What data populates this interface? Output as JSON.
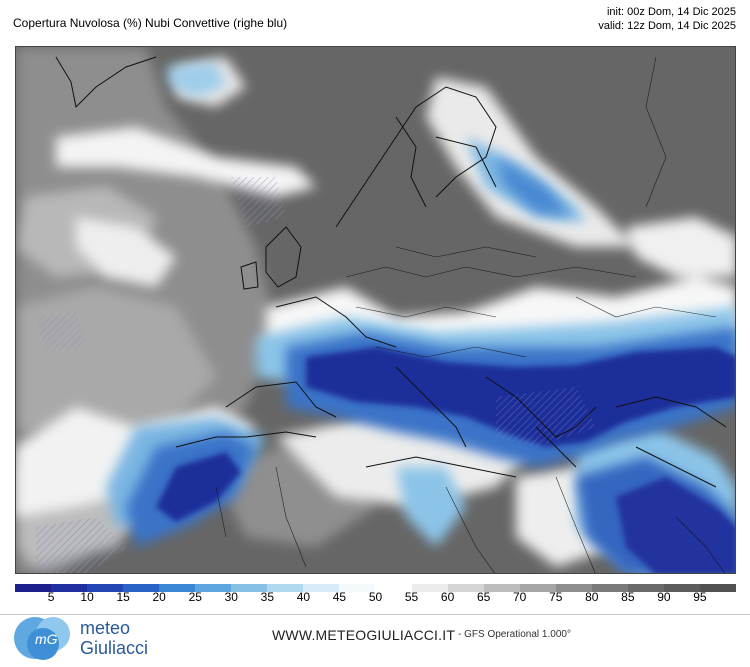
{
  "header": {
    "title": "Copertura Nuvolosa (%) Nubi Convettive (righe blu)",
    "init": "init: 00z Dom, 14 Dic 2025",
    "valid": "valid: 12z Dom, 14 Dic 2025"
  },
  "legend": {
    "ticks": [
      "5",
      "10",
      "15",
      "20",
      "25",
      "30",
      "35",
      "40",
      "45",
      "50",
      "55",
      "60",
      "65",
      "70",
      "75",
      "80",
      "85",
      "90",
      "95"
    ],
    "colors": [
      "#1e1e8c",
      "#1f2fa0",
      "#2346b4",
      "#2a63c6",
      "#3b86d4",
      "#5da5de",
      "#86c0e6",
      "#b0d8ef",
      "#d7ecf6",
      "#f4f9fc",
      "#ffffff",
      "#ececec",
      "#d5d5d5",
      "#bdbdbd",
      "#a5a5a5",
      "#8e8e8e",
      "#7a7a7a",
      "#6a6a6a",
      "#5c5c5c",
      "#515151"
    ]
  },
  "footer": {
    "logo_line1": "meteo",
    "logo_line2": "Giuliacci",
    "site": "WWW.METEOGIULIACCI.IT",
    "model": "- GFS Operational 1.000°"
  }
}
